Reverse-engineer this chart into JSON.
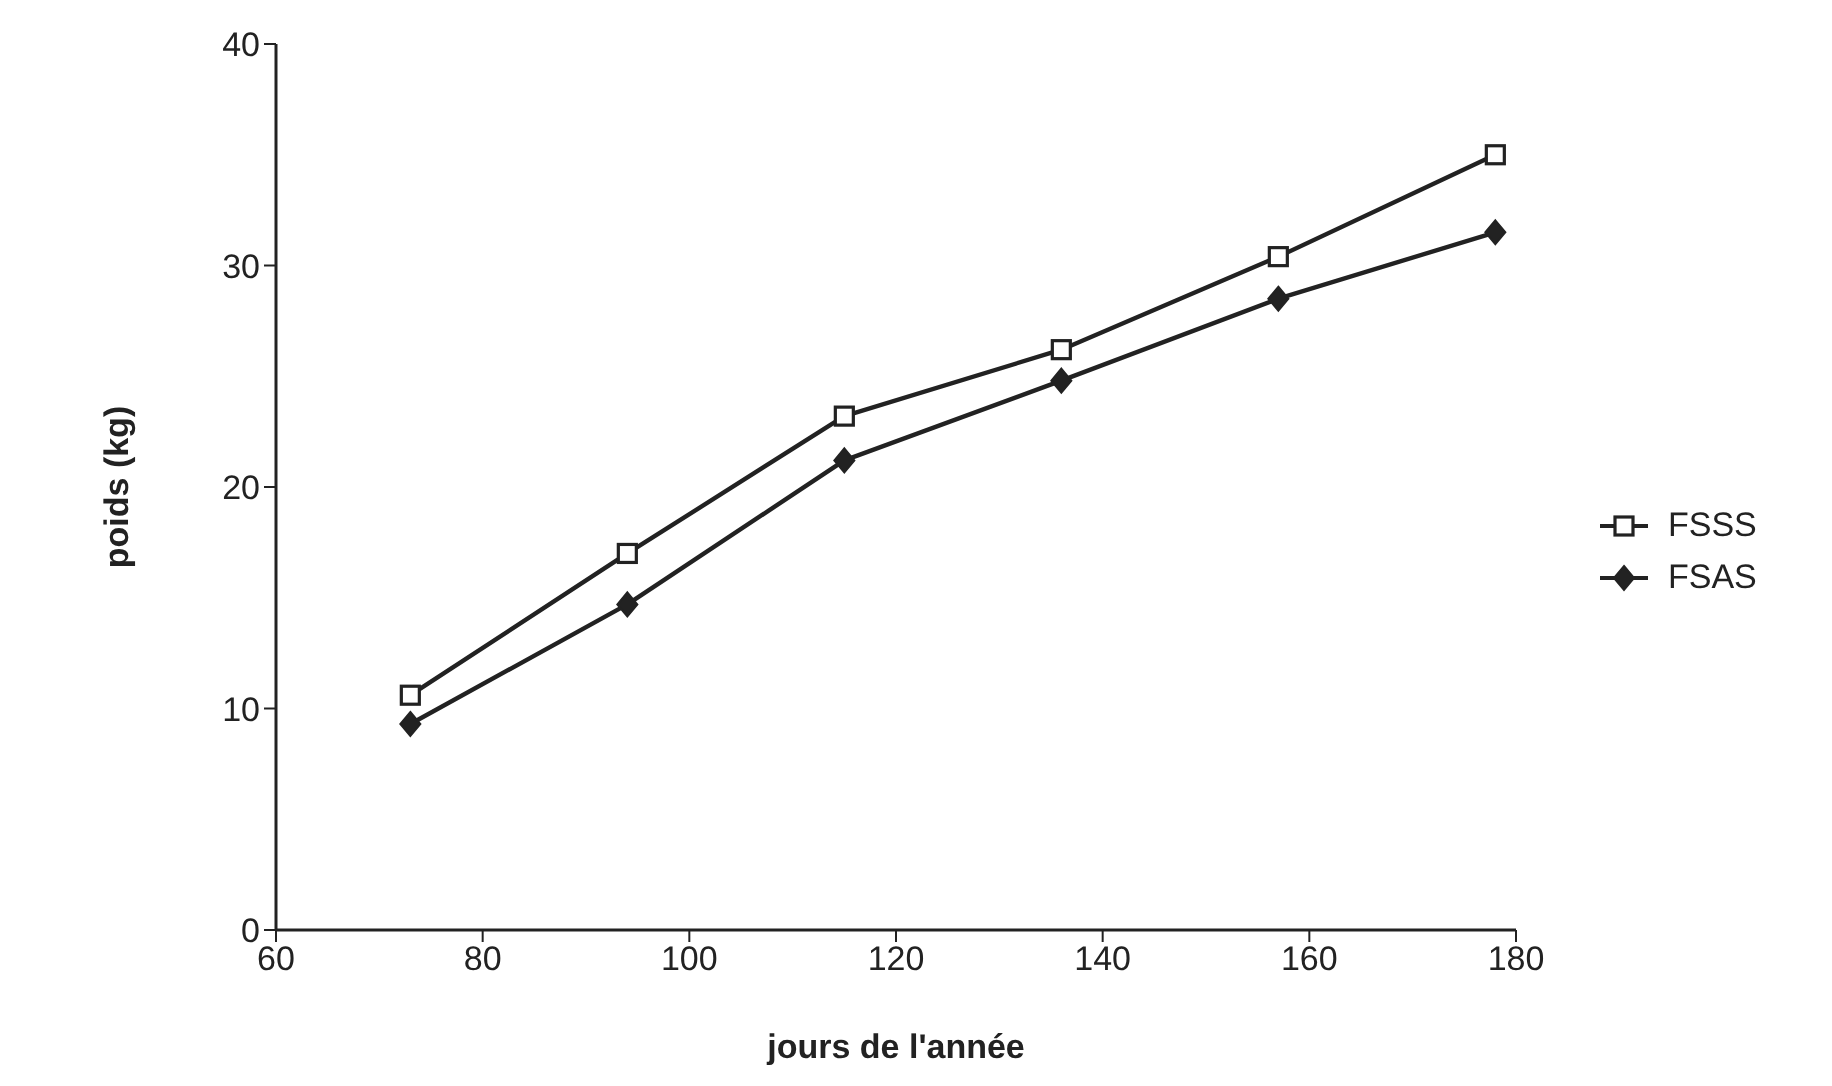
{
  "chart_data": {
    "type": "line",
    "xlabel": "jours de l'année",
    "ylabel": "poids (kg)",
    "x": [
      73,
      94,
      115,
      136,
      157,
      178
    ],
    "series": [
      {
        "name": "FSSS",
        "color": "#222222",
        "marker": "square",
        "values": [
          10.6,
          17,
          23.2,
          26.2,
          30.4,
          35
        ]
      },
      {
        "name": "FSAS",
        "color": "#222222",
        "marker": "diamond",
        "values": [
          9.3,
          14.7,
          21.2,
          24.8,
          28.5,
          31.5
        ]
      }
    ],
    "xlim": [
      60,
      180
    ],
    "xticks": [
      60,
      80,
      100,
      120,
      140,
      160,
      180
    ],
    "ylim": [
      0,
      40
    ],
    "yticks": [
      0,
      10,
      20,
      30,
      40
    ],
    "grid": false,
    "legend": "right",
    "line_style": "solid"
  }
}
